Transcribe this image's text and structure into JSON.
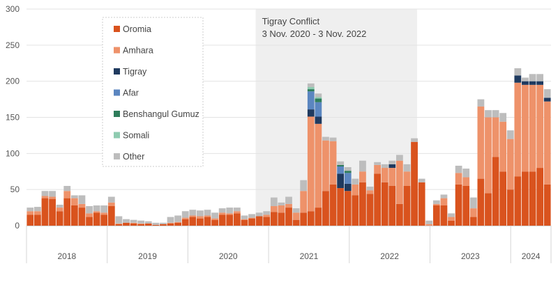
{
  "chart_data": {
    "type": "bar",
    "stacked": true,
    "grid": "horizontal",
    "legend_placement": "top-left inside plot",
    "y_axis": {
      "ylim": [
        0,
        300
      ],
      "ticks": [
        "0",
        "50",
        "100",
        "150",
        "200",
        "250",
        "300"
      ]
    },
    "x_axis": {
      "year_labels": [
        {
          "label": "2018",
          "start": 0,
          "end": 10
        },
        {
          "label": "2019",
          "start": 10,
          "end": 20
        },
        {
          "label": "2020",
          "start": 20,
          "end": 30
        },
        {
          "label": "2021",
          "start": 30,
          "end": 40
        },
        {
          "label": "2022",
          "start": 40,
          "end": 50
        },
        {
          "label": "2023",
          "start": 50,
          "end": 60
        },
        {
          "label": "2024",
          "start": 60,
          "end": 65
        }
      ]
    },
    "annotation": {
      "title": "Tigray Conflict",
      "subtitle": "3 Nov. 2020 - 3 Nov. 2022",
      "start": 28.4,
      "end": 48.4
    },
    "series": [
      {
        "name": "Oromia",
        "color": "#d9531e",
        "values": [
          15,
          15,
          38,
          37,
          20,
          38,
          28,
          25,
          12,
          18,
          15,
          27,
          2,
          4,
          3,
          2,
          3,
          1,
          2,
          3,
          4,
          9,
          12,
          10,
          12,
          8,
          15,
          15,
          17,
          8,
          10,
          13,
          12,
          19,
          18,
          25,
          8,
          18,
          20,
          25,
          48,
          57,
          52,
          48,
          42,
          60,
          44,
          72,
          60,
          55,
          30,
          55,
          116,
          60,
          0,
          28,
          28,
          7,
          57,
          55,
          12,
          65,
          45,
          95,
          75,
          50,
          68,
          75,
          75,
          80,
          57
        ]
      },
      {
        "name": "Amhara",
        "color": "#ee926a",
        "values": [
          5,
          5,
          3,
          3,
          5,
          10,
          10,
          5,
          5,
          2,
          3,
          5,
          1,
          0,
          1,
          1,
          0,
          0,
          0,
          1,
          1,
          2,
          2,
          3,
          2,
          2,
          3,
          2,
          3,
          1,
          1,
          0,
          3,
          8,
          10,
          5,
          10,
          30,
          131,
          116,
          70,
          60,
          0,
          0,
          15,
          15,
          5,
          12,
          20,
          25,
          60,
          20,
          0,
          0,
          2,
          2,
          10,
          5,
          16,
          12,
          12,
          100,
          105,
          55,
          69,
          70,
          130,
          120,
          120,
          115,
          115
        ]
      },
      {
        "name": "Tigray",
        "color": "#1f3a5f",
        "values": [
          0,
          0,
          0,
          0,
          0,
          0,
          0,
          0,
          0,
          0,
          0,
          0,
          0,
          0,
          0,
          0,
          0,
          0,
          0,
          0,
          0,
          0,
          0,
          0,
          0,
          0,
          0,
          0,
          0,
          0,
          0,
          0,
          0,
          0,
          0,
          0,
          0,
          0,
          10,
          10,
          0,
          0,
          20,
          10,
          0,
          0,
          0,
          0,
          0,
          5,
          0,
          0,
          0,
          0,
          0,
          0,
          0,
          0,
          0,
          0,
          0,
          0,
          0,
          0,
          0,
          0,
          10,
          5,
          5,
          5,
          5
        ]
      },
      {
        "name": "Afar",
        "color": "#5b86c0",
        "values": [
          0,
          0,
          0,
          0,
          0,
          0,
          0,
          0,
          0,
          0,
          0,
          0,
          0,
          0,
          0,
          0,
          0,
          0,
          0,
          0,
          0,
          0,
          0,
          0,
          0,
          0,
          0,
          0,
          0,
          0,
          0,
          0,
          0,
          0,
          0,
          0,
          0,
          0,
          25,
          20,
          0,
          0,
          10,
          15,
          0,
          0,
          0,
          0,
          0,
          0,
          0,
          0,
          0,
          0,
          0,
          0,
          0,
          0,
          0,
          0,
          0,
          0,
          0,
          0,
          0,
          0,
          0,
          0,
          0,
          0,
          0
        ]
      },
      {
        "name": "Benshangul Gumuz",
        "color": "#2e7d5b",
        "values": [
          0,
          0,
          0,
          0,
          0,
          0,
          0,
          0,
          0,
          0,
          0,
          0,
          0,
          0,
          0,
          0,
          0,
          0,
          0,
          0,
          0,
          0,
          0,
          0,
          0,
          0,
          0,
          0,
          0,
          0,
          0,
          0,
          0,
          0,
          0,
          0,
          0,
          0,
          3,
          5,
          0,
          0,
          2,
          3,
          0,
          0,
          0,
          0,
          0,
          0,
          0,
          0,
          0,
          0,
          0,
          0,
          0,
          0,
          0,
          0,
          0,
          0,
          0,
          0,
          0,
          0,
          0,
          0,
          0,
          0,
          0
        ]
      },
      {
        "name": "Somali",
        "color": "#8fcbb0",
        "values": [
          0,
          0,
          0,
          0,
          0,
          0,
          0,
          0,
          0,
          0,
          0,
          0,
          0,
          0,
          0,
          0,
          0,
          0,
          0,
          0,
          0,
          0,
          0,
          0,
          0,
          0,
          0,
          0,
          0,
          0,
          0,
          0,
          0,
          0,
          0,
          0,
          0,
          0,
          3,
          2,
          0,
          0,
          0,
          0,
          0,
          0,
          0,
          0,
          0,
          0,
          0,
          0,
          0,
          0,
          0,
          0,
          0,
          0,
          0,
          0,
          0,
          0,
          0,
          0,
          0,
          0,
          0,
          0,
          0,
          0,
          0
        ]
      },
      {
        "name": "Other",
        "color": "#bdbdbd",
        "values": [
          5,
          6,
          7,
          8,
          4,
          7,
          4,
          12,
          10,
          8,
          10,
          8,
          10,
          5,
          4,
          4,
          3,
          3,
          2,
          8,
          9,
          9,
          8,
          8,
          8,
          8,
          6,
          8,
          5,
          5,
          5,
          5,
          5,
          12,
          4,
          10,
          6,
          15,
          5,
          5,
          5,
          5,
          5,
          5,
          8,
          15,
          5,
          4,
          5,
          5,
          8,
          10,
          5,
          5,
          5,
          5,
          5,
          5,
          10,
          12,
          15,
          10,
          10,
          10,
          12,
          12,
          10,
          5,
          10,
          10,
          12
        ]
      }
    ]
  }
}
